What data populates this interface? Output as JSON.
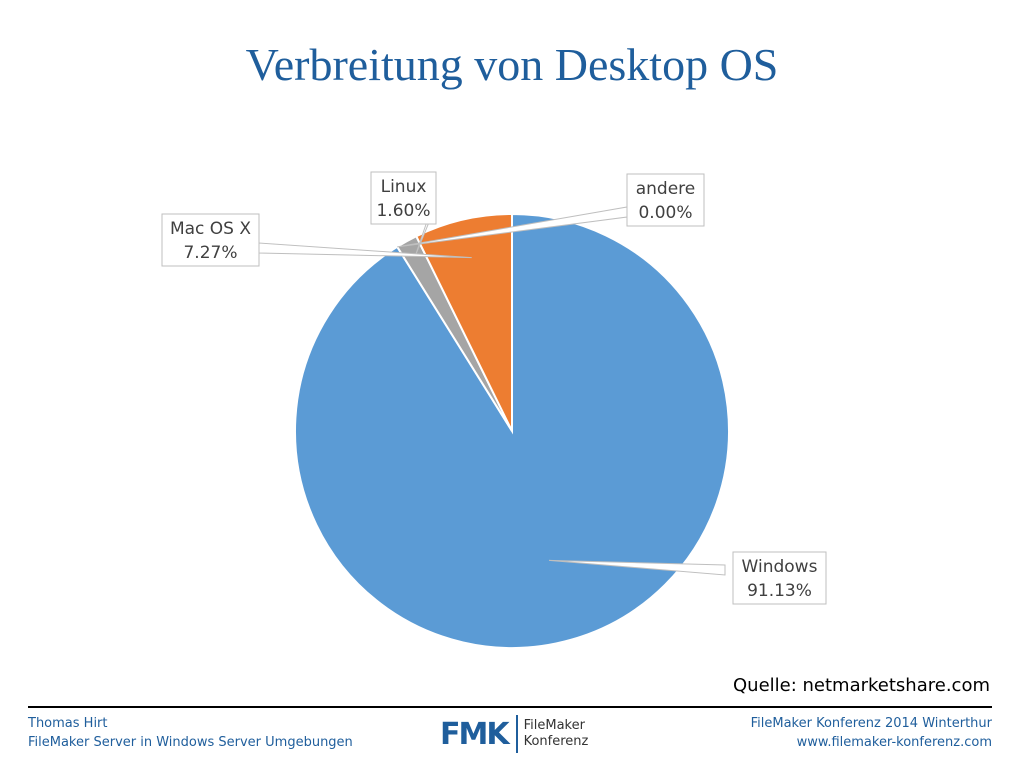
{
  "title": "Verbreitung von Desktop OS",
  "source": "Quelle: netmarketshare.com",
  "footer": {
    "author": "Thomas Hirt",
    "subtitle": "FileMaker Server in Windows Server Umgebungen",
    "event": "FileMaker Konferenz 2014 Winterthur",
    "url": "www.filemaker-konferenz.com",
    "logo_mark": "FMK",
    "logo_line1": "FileMaker",
    "logo_line2": "Konferenz"
  },
  "colors": {
    "title": "#1f5e9c",
    "Windows": "#5b9bd5",
    "MacOSX": "#ed7d31",
    "Linux": "#a5a5a5",
    "andere": "#ffc000"
  },
  "chart_data": {
    "type": "pie",
    "title": "",
    "slices": [
      {
        "label": "Windows",
        "value": 91.13,
        "value_label": "91.13%",
        "color": "#5b9bd5"
      },
      {
        "label": "andere",
        "value": 0.0,
        "value_label": "0.00%",
        "color": "#ffc000"
      },
      {
        "label": "Linux",
        "value": 1.6,
        "value_label": "1.60%",
        "color": "#a5a5a5"
      },
      {
        "label": "Mac OS X",
        "value": 7.27,
        "value_label": "7.27%",
        "color": "#ed7d31"
      }
    ],
    "start": "12 o'clock",
    "direction": "clockwise",
    "legend": "none",
    "data_labels": "callouts"
  }
}
